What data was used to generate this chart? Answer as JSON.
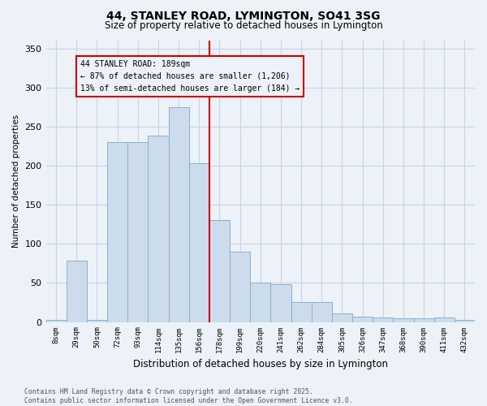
{
  "title_line1": "44, STANLEY ROAD, LYMINGTON, SO41 3SG",
  "title_line2": "Size of property relative to detached houses in Lymington",
  "xlabel": "Distribution of detached houses by size in Lymington",
  "ylabel": "Number of detached properties",
  "categories": [
    "8sqm",
    "29sqm",
    "50sqm",
    "72sqm",
    "93sqm",
    "114sqm",
    "135sqm",
    "156sqm",
    "178sqm",
    "199sqm",
    "220sqm",
    "241sqm",
    "262sqm",
    "284sqm",
    "305sqm",
    "326sqm",
    "347sqm",
    "368sqm",
    "390sqm",
    "411sqm",
    "432sqm"
  ],
  "bar_heights": [
    3,
    78,
    3,
    230,
    230,
    238,
    275,
    203,
    130,
    90,
    50,
    48,
    25,
    25,
    11,
    7,
    6,
    5,
    5,
    6,
    3
  ],
  "bar_color": "#ccdcec",
  "bar_edgecolor": "#8ab0cc",
  "vline_index": 8,
  "vline_color": "#cc0000",
  "annotation_text": "44 STANLEY ROAD: 189sqm\n← 87% of detached houses are smaller (1,206)\n13% of semi-detached houses are larger (184) →",
  "annotation_box_edgecolor": "#cc0000",
  "grid_color": "#c8d4e4",
  "background_color": "#edf1f8",
  "footer_text": "Contains HM Land Registry data © Crown copyright and database right 2025.\nContains public sector information licensed under the Open Government Licence v3.0.",
  "ylim": [
    0,
    360
  ],
  "yticks": [
    0,
    50,
    100,
    150,
    200,
    250,
    300,
    350
  ]
}
